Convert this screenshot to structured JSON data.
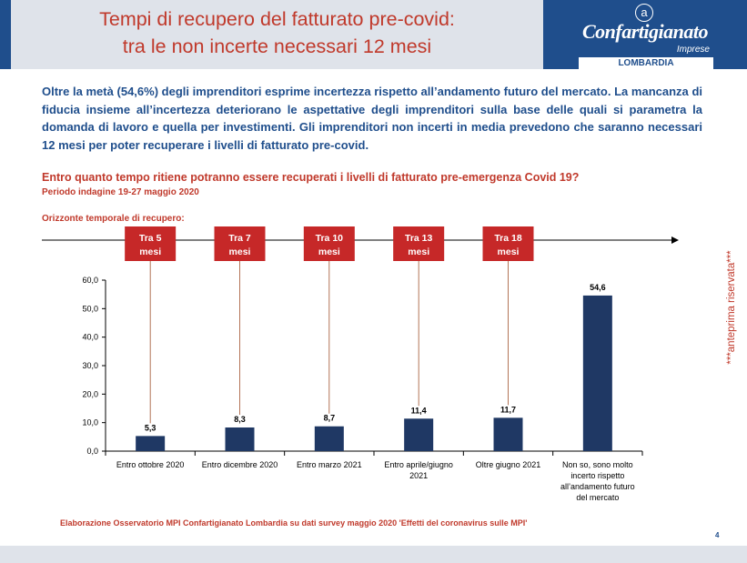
{
  "header": {
    "title_line1": "Tempi di recupero del fatturato pre-covid:",
    "title_line2": "tra le non incerte necessari 12 mesi",
    "logo_name": "Confartigianato",
    "logo_sub": "Imprese",
    "logo_region": "LOMBARDIA",
    "logo_mark": "a"
  },
  "intro": "Oltre la metà (54,6%)  degli imprenditori esprime incertezza rispetto all’andamento futuro del mercato. La mancanza di fiducia insieme all’incertezza deteriorano le aspettative degli imprenditori sulla base delle quali si parametra la domanda di lavoro e quella per investimenti. Gli imprenditori non incerti in media prevedono che saranno necessari 12 mesi per poter recuperare i livelli di fatturato pre-covid.",
  "question": "Entro quanto tempo ritiene potranno essere recuperati i livelli di fatturato pre-emergenza Covid 19?",
  "period": "Periodo indagine 19-27 maggio 2020",
  "horizon_label": "Orizzonte temporale di recupero:",
  "side_note": "***anteprima riservata***",
  "source": "Elaborazione Osservatorio MPI Confartigianato Lombardia su dati survey maggio 2020  'Effetti del coronavirus sulle MPI'",
  "page_number": "4",
  "colors": {
    "accent_red": "#c0392b",
    "brand_blue": "#1f4e8c",
    "bar_fill": "#1f3864",
    "timeline_box": "#c62828"
  },
  "chart_data": {
    "type": "bar",
    "categories": [
      [
        "Entro ottobre 2020"
      ],
      [
        "Entro dicembre 2020"
      ],
      [
        "Entro marzo 2021"
      ],
      [
        "Entro aprile/giugno",
        "2021"
      ],
      [
        "Oltre giugno 2021"
      ],
      [
        "Non so, sono molto",
        "incerto rispetto",
        "all’andamento  futuro",
        "del mercato"
      ]
    ],
    "values": [
      5.3,
      8.3,
      8.7,
      11.4,
      11.7,
      54.6
    ],
    "value_labels": [
      "5,3",
      "8,3",
      "8,7",
      "11,4",
      "11,7",
      "54,6"
    ],
    "ylim": [
      0,
      60
    ],
    "yticks": [
      "0,0",
      "10,0",
      "20,0",
      "30,0",
      "40,0",
      "50,0",
      "60,0"
    ],
    "grid": false,
    "timeline": [
      {
        "line1": "Tra 5",
        "line2": "mesi"
      },
      {
        "line1": "Tra 7",
        "line2": "mesi"
      },
      {
        "line1": "Tra 10",
        "line2": "mesi"
      },
      {
        "line1": "Tra 13",
        "line2": "mesi"
      },
      {
        "line1": "Tra 18",
        "line2": "mesi"
      }
    ]
  }
}
